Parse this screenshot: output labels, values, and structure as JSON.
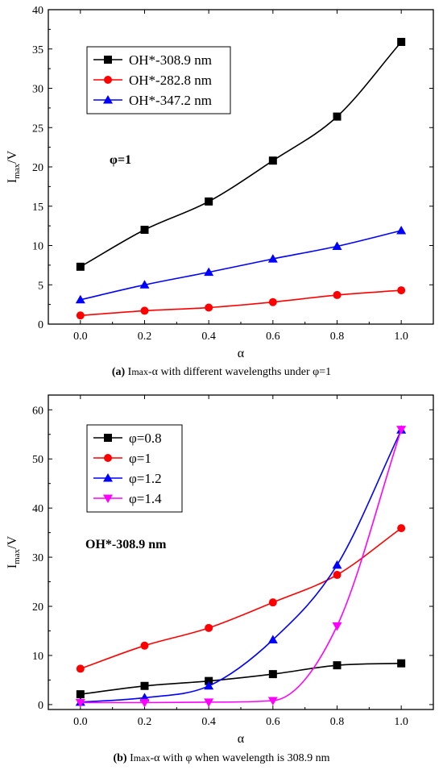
{
  "chart_data": [
    {
      "type": "line",
      "panel_label": "(a)",
      "caption_var": "I",
      "caption_sub": "max",
      "caption_rest": "-α with different wavelengths under φ=1",
      "xlabel": "α",
      "ylabel_main": "I",
      "ylabel_sub": "max",
      "ylabel_unit": "/V",
      "annotation": "φ=1",
      "xlim": [
        -0.1,
        1.1
      ],
      "ylim": [
        0,
        40
      ],
      "xticks": [
        0.0,
        0.2,
        0.4,
        0.6,
        0.8,
        1.0
      ],
      "xtick_labels": [
        "0.0",
        "0.2",
        "0.4",
        "0.6",
        "0.8",
        "1.0"
      ],
      "yticks": [
        0,
        5,
        10,
        15,
        20,
        25,
        30,
        35,
        40
      ],
      "ytick_labels": [
        "0",
        "5",
        "10",
        "15",
        "20",
        "25",
        "30",
        "35",
        "40"
      ],
      "legend_position": "top-left",
      "x": [
        0.0,
        0.2,
        0.4,
        0.6,
        0.8,
        1.0
      ],
      "series": [
        {
          "name": "OH*-308.9 nm",
          "marker": "square",
          "color": "#000000",
          "values": [
            7.3,
            12.0,
            15.6,
            20.8,
            26.4,
            35.9
          ]
        },
        {
          "name": "OH*-282.8 nm",
          "marker": "circle",
          "color": "#ff0000",
          "values": [
            1.1,
            1.7,
            2.1,
            2.8,
            3.7,
            4.3
          ]
        },
        {
          "name": "OH*-347.2 nm",
          "marker": "triangle-up",
          "color": "#0000ff",
          "values": [
            3.1,
            5.0,
            6.6,
            8.3,
            9.9,
            11.9
          ]
        }
      ]
    },
    {
      "type": "line",
      "panel_label": "(b)",
      "caption_var": "I",
      "caption_sub": "max",
      "caption_rest": "-α with φ when wavelength is 308.9 nm",
      "xlabel": "α",
      "ylabel_main": "I",
      "ylabel_sub": "max",
      "ylabel_unit": "/V",
      "annotation": "OH*-308.9 nm",
      "xlim": [
        -0.1,
        1.1
      ],
      "ylim": [
        -1,
        63
      ],
      "xticks": [
        0.0,
        0.2,
        0.4,
        0.6,
        0.8,
        1.0
      ],
      "xtick_labels": [
        "0.0",
        "0.2",
        "0.4",
        "0.6",
        "0.8",
        "1.0"
      ],
      "yticks": [
        0,
        10,
        20,
        30,
        40,
        50,
        60
      ],
      "ytick_labels": [
        "0",
        "10",
        "20",
        "30",
        "40",
        "50",
        "60"
      ],
      "legend_position": "top-left",
      "x": [
        0.0,
        0.2,
        0.4,
        0.6,
        0.8,
        1.0
      ],
      "series": [
        {
          "name": "φ=0.8",
          "marker": "square",
          "color": "#000000",
          "values": [
            2.1,
            3.8,
            4.8,
            6.2,
            8.0,
            8.4
          ]
        },
        {
          "name": "φ=1",
          "marker": "circle",
          "color": "#ff0000",
          "values": [
            7.3,
            12.0,
            15.6,
            20.8,
            26.4,
            35.9
          ]
        },
        {
          "name": "φ=1.2",
          "marker": "triangle-up",
          "color": "#0000ff",
          "values": [
            0.5,
            1.4,
            3.8,
            13.2,
            28.4,
            55.9
          ]
        },
        {
          "name": "φ=1.4",
          "marker": "triangle-down",
          "color": "#ff00ff",
          "values": [
            0.4,
            0.4,
            0.5,
            0.8,
            16.0,
            56.0
          ]
        }
      ]
    }
  ]
}
